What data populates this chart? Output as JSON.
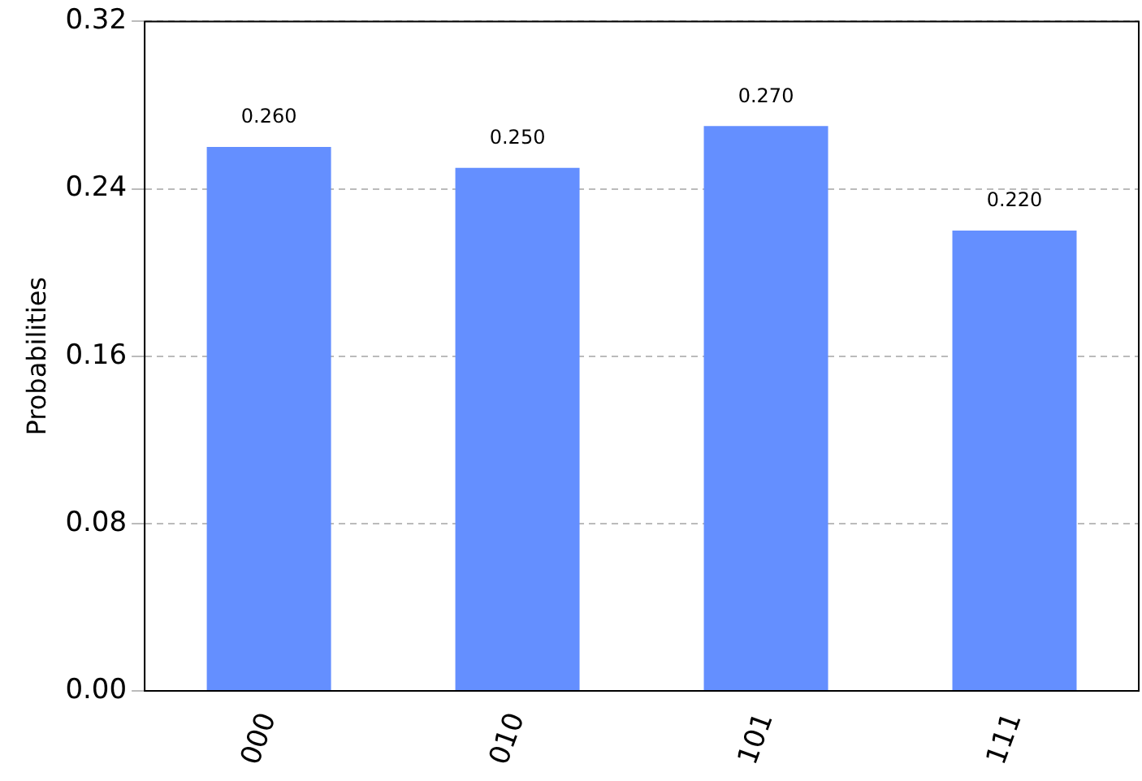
{
  "chart_data": {
    "type": "bar",
    "ylabel": "Probabilities",
    "categories": [
      "000",
      "010",
      "101",
      "111"
    ],
    "values": [
      0.26,
      0.25,
      0.27,
      0.22
    ],
    "value_labels": [
      "0.260",
      "0.250",
      "0.270",
      "0.220"
    ],
    "color": "#648fff",
    "ylim": [
      0,
      0.32
    ],
    "yticks": [
      {
        "value": 0,
        "label": "0.00"
      },
      {
        "value": 0.08,
        "label": "0.08"
      },
      {
        "value": 0.16,
        "label": "0.16"
      },
      {
        "value": 0.24,
        "label": "0.24"
      },
      {
        "value": 0.32,
        "label": "0.32"
      }
    ],
    "grid": "y",
    "legend": false
  }
}
